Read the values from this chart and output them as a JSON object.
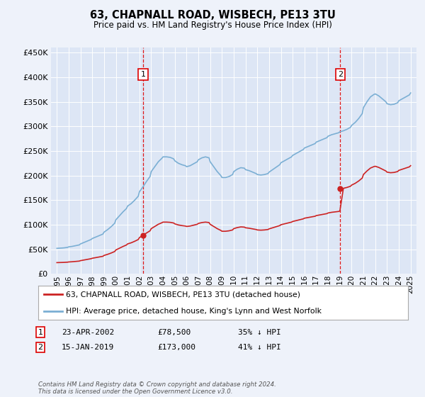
{
  "title": "63, CHAPNALL ROAD, WISBECH, PE13 3TU",
  "subtitle": "Price paid vs. HM Land Registry's House Price Index (HPI)",
  "legend_line1": "63, CHAPNALL ROAD, WISBECH, PE13 3TU (detached house)",
  "legend_line2": "HPI: Average price, detached house, King's Lynn and West Norfolk",
  "marker1_date": "23-APR-2002",
  "marker1_price": "£78,500",
  "marker1_hpi": "35% ↓ HPI",
  "marker1_x": 2002.31,
  "marker1_y": 78500,
  "marker2_date": "15-JAN-2019",
  "marker2_price": "£173,000",
  "marker2_hpi": "41% ↓ HPI",
  "marker2_x": 2019.04,
  "marker2_y": 173000,
  "footer": "Contains HM Land Registry data © Crown copyright and database right 2024.\nThis data is licensed under the Open Government Licence v3.0.",
  "bg_color": "#eef2fa",
  "plot_bg": "#dde6f5",
  "hpi_color": "#7bafd4",
  "price_color": "#cc2222",
  "marker_vline_color": "#dd0000",
  "ylim": [
    0,
    460000
  ],
  "xlim": [
    1994.5,
    2025.5
  ],
  "yticks": [
    0,
    50000,
    100000,
    150000,
    200000,
    250000,
    300000,
    350000,
    400000,
    450000
  ],
  "xticks": [
    1995,
    1996,
    1997,
    1998,
    1999,
    2000,
    2001,
    2002,
    2003,
    2004,
    2005,
    2006,
    2007,
    2008,
    2009,
    2010,
    2011,
    2012,
    2013,
    2014,
    2015,
    2016,
    2017,
    2018,
    2019,
    2020,
    2021,
    2022,
    2023,
    2024,
    2025
  ]
}
